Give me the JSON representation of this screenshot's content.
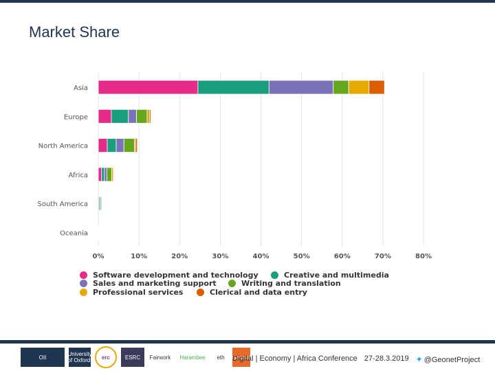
{
  "slide": {
    "title": "Market Share"
  },
  "chart_data": {
    "type": "bar",
    "orientation": "horizontal",
    "stacked": true,
    "categories": [
      "Asia",
      "Europe",
      "North America",
      "Africa",
      "South America",
      "Oceania"
    ],
    "xlim": [
      0,
      80
    ],
    "xticks": [
      "0%",
      "10%",
      "20%",
      "30%",
      "40%",
      "50%",
      "60%",
      "70%",
      "80%"
    ],
    "xtick_values": [
      0,
      10,
      20,
      30,
      40,
      50,
      60,
      70,
      80
    ],
    "grid": true,
    "legend_position": "bottom",
    "series": [
      {
        "name": "Software development and technology",
        "color": "#e52b8a",
        "values": [
          24.5,
          3.2,
          2.2,
          0.8,
          0.2,
          0.1
        ]
      },
      {
        "name": "Creative and multimedia",
        "color": "#1a9e7e",
        "values": [
          17.5,
          4.2,
          2.2,
          0.7,
          0.3,
          0.1
        ]
      },
      {
        "name": "Sales and marketing support",
        "color": "#7b72b9",
        "values": [
          15.8,
          2.0,
          1.9,
          0.6,
          0.2,
          0.05
        ]
      },
      {
        "name": "Writing and translation",
        "color": "#66a61e",
        "values": [
          3.8,
          2.6,
          2.6,
          1.2,
          0.2,
          0.05
        ]
      },
      {
        "name": "Professional services",
        "color": "#e6ab02",
        "values": [
          5.0,
          0.6,
          0.3,
          0.4,
          0.1,
          0.05
        ]
      },
      {
        "name": "Clerical and data entry",
        "color": "#d95f02",
        "values": [
          3.8,
          0.3,
          0.4,
          0.1,
          0.05,
          0.05
        ]
      }
    ]
  },
  "footer": {
    "logos": [
      "OII",
      "University of Oxford",
      "erc",
      "ESRC",
      "Fairwork",
      "Harambee",
      "eth",
      "Geonet"
    ],
    "conference": "Digital | Economy | Africa Conference",
    "date": "27-28.3.2019",
    "twitter": "@GeonetProject"
  },
  "colors": {
    "navy": "#1f3550"
  }
}
